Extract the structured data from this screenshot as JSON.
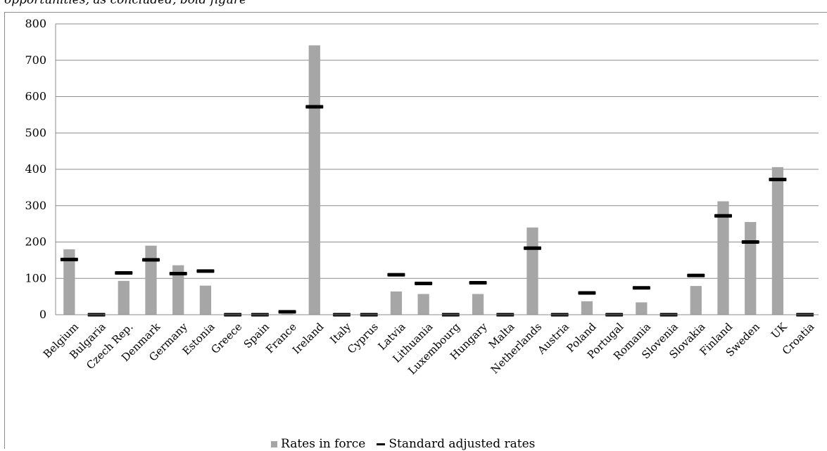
{
  "header": {
    "text": "opportunities, as concluded, bold figure"
  },
  "chart_data": {
    "type": "bar",
    "categories": [
      "Belgium",
      "Bulgaria",
      "Czech Rep.",
      "Denmark",
      "Germany",
      "Estonia",
      "Greece",
      "Spain",
      "France",
      "Ireland",
      "Italy",
      "Cyprus",
      "Latvia",
      "Lithuania",
      "Luxembourg",
      "Hungary",
      "Malta",
      "Netherlands",
      "Austria",
      "Poland",
      "Portugal",
      "Romania",
      "Slovenia",
      "Slovakia",
      "Finland",
      "Sweden",
      "UK",
      "Croatia"
    ],
    "series": [
      {
        "name": "Rates in force",
        "kind": "bar",
        "color": "#a6a6a6",
        "values": [
          180,
          0,
          93,
          190,
          136,
          80,
          0,
          0,
          2,
          741,
          0,
          0,
          64,
          57,
          0,
          57,
          0,
          240,
          0,
          37,
          0,
          34,
          0,
          79,
          312,
          255,
          406,
          0
        ]
      },
      {
        "name": "Standard adjusted rates",
        "kind": "marker",
        "color": "#000000",
        "values": [
          152,
          0,
          115,
          151,
          113,
          120,
          0,
          0,
          8,
          572,
          0,
          0,
          110,
          86,
          0,
          88,
          0,
          183,
          0,
          60,
          0,
          74,
          0,
          108,
          272,
          200,
          372,
          0
        ]
      }
    ],
    "yticks": [
      "0",
      "100",
      "200",
      "300",
      "400",
      "500",
      "600",
      "700",
      "800"
    ],
    "ylim": [
      0,
      800
    ],
    "grid": true,
    "legend": "bottom"
  }
}
